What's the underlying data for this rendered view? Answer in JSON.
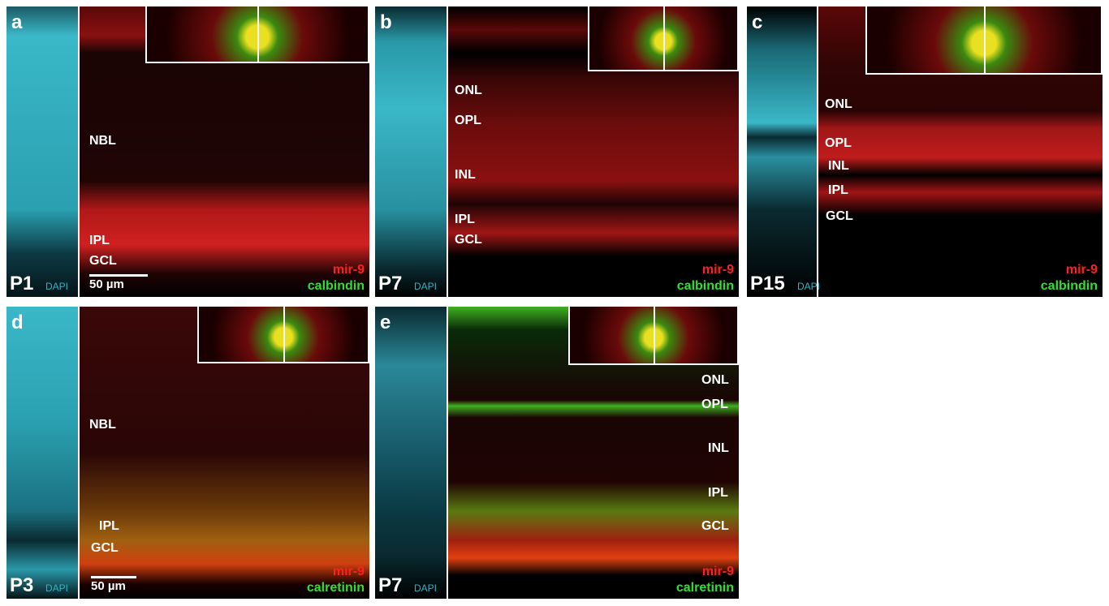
{
  "panels": [
    {
      "letter": "a",
      "age": "P1",
      "dapi": "DAPI",
      "layers": [
        "NBL",
        "IPL",
        "GCL"
      ],
      "stains": [
        "mir-9",
        "calbindin"
      ],
      "scale": "50 µm"
    },
    {
      "letter": "b",
      "age": "P7",
      "dapi": "DAPI",
      "layers": [
        "ONL",
        "OPL",
        "INL",
        "IPL",
        "GCL"
      ],
      "stains": [
        "mir-9",
        "calbindin"
      ]
    },
    {
      "letter": "c",
      "age": "P15",
      "dapi": "DAPI",
      "layers": [
        "ONL",
        "OPL",
        "INL",
        "IPL",
        "GCL"
      ],
      "stains": [
        "mir-9",
        "calbindin"
      ]
    },
    {
      "letter": "d",
      "age": "P3",
      "dapi": "DAPI",
      "layers": [
        "NBL",
        "IPL",
        "GCL"
      ],
      "stains": [
        "mir-9",
        "calretinin"
      ],
      "scale": "50 µm"
    },
    {
      "letter": "e",
      "age": "P7",
      "dapi": "DAPI",
      "layers": [
        "ONL",
        "OPL",
        "INL",
        "IPL",
        "GCL"
      ],
      "stains": [
        "mir-9",
        "calretinin"
      ]
    }
  ]
}
